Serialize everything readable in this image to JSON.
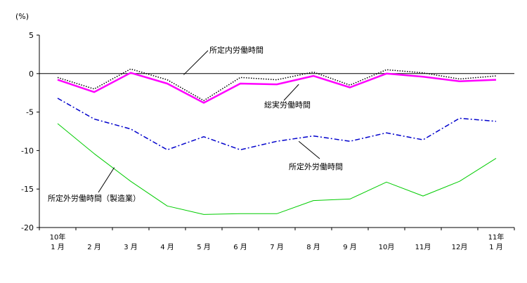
{
  "chart_data": {
    "type": "line",
    "ylabel": "(%)",
    "ylim": [
      -20,
      5
    ],
    "yticks": [
      5,
      0,
      -5,
      -10,
      -15,
      -20
    ],
    "categories": [
      {
        "line1": "10年",
        "line2": "1 月"
      },
      {
        "line1": "",
        "line2": "2 月"
      },
      {
        "line1": "",
        "line2": "3 月"
      },
      {
        "line1": "",
        "line2": "4 月"
      },
      {
        "line1": "",
        "line2": "5 月"
      },
      {
        "line1": "",
        "line2": "6 月"
      },
      {
        "line1": "",
        "line2": "7 月"
      },
      {
        "line1": "",
        "line2": "8 月"
      },
      {
        "line1": "",
        "line2": "9 月"
      },
      {
        "line1": "",
        "line2": "10月"
      },
      {
        "line1": "",
        "line2": "11月"
      },
      {
        "line1": "",
        "line2": "12月"
      },
      {
        "line1": "11年",
        "line2": "1 月"
      }
    ],
    "series": [
      {
        "name": "所定内労働時間",
        "color": "#000000",
        "style": "dotted",
        "values": [
          -0.5,
          -2.0,
          0.6,
          -0.8,
          -3.5,
          -0.5,
          -0.8,
          0.2,
          -1.5,
          0.5,
          0.1,
          -0.7,
          -0.3
        ]
      },
      {
        "name": "総実労働時間",
        "color": "#ff00ff",
        "style": "solid-thick",
        "values": [
          -0.8,
          -2.4,
          0.1,
          -1.3,
          -3.8,
          -1.3,
          -1.4,
          -0.3,
          -1.8,
          0.0,
          -0.4,
          -1.0,
          -0.8
        ]
      },
      {
        "name": "所定外労働時間",
        "color": "#0000cc",
        "style": "dashdot",
        "values": [
          -3.2,
          -5.9,
          -7.2,
          -9.9,
          -8.2,
          -9.9,
          -8.8,
          -8.1,
          -8.8,
          -7.7,
          -8.6,
          -5.8,
          -6.2
        ]
      },
      {
        "name": "所定外労働時間（製造業）",
        "color": "#00cc00",
        "style": "solid",
        "values": [
          -6.5,
          -10.4,
          -14.0,
          -17.2,
          -18.3,
          -18.2,
          -18.2,
          -16.5,
          -16.3,
          -14.1,
          -15.9,
          -14.0,
          -11.0
        ]
      }
    ],
    "annotations": [
      {
        "text": "所定内労働時間",
        "series": 0
      },
      {
        "text": "総実労働時間",
        "series": 1
      },
      {
        "text": "所定外労働時間",
        "series": 2
      },
      {
        "text": "所定外労働時間（製造業）",
        "series": 3
      }
    ]
  }
}
